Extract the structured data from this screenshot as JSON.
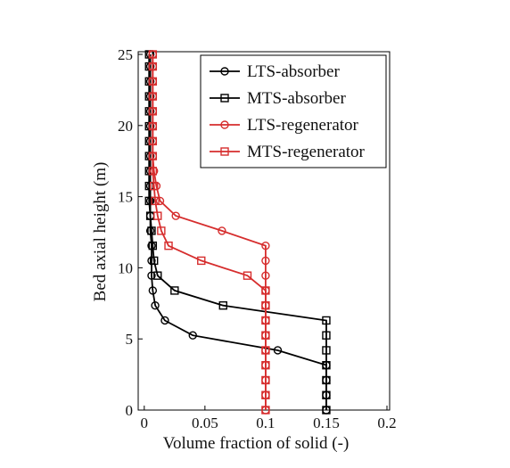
{
  "chart_data": {
    "type": "line",
    "xlabel": "Volume fraction of solid (-)",
    "ylabel": "Bed axial height (m)",
    "xlim": [
      -0.005,
      0.2
    ],
    "ylim": [
      0,
      25
    ],
    "xticks": [
      0,
      0.05,
      0.1,
      0.15,
      0.2
    ],
    "yticks": [
      0,
      5,
      10,
      15,
      20,
      25
    ],
    "legend": "upper right",
    "series": [
      {
        "name": "LTS-absorber",
        "color": "#000000",
        "marker": "circle",
        "x": [
          0.15,
          0.15,
          0.15,
          0.15,
          0.11,
          0.04,
          0.017,
          0.009,
          0.007,
          0.006,
          0.006,
          0.006,
          0.005,
          0.005,
          0.005,
          0.005,
          0.005,
          0.005,
          0.005,
          0.005,
          0.005,
          0.005,
          0.005,
          0.005,
          0.005
        ],
        "y": [
          0,
          1.05,
          2.1,
          3.15,
          4.2,
          5.25,
          6.3,
          7.35,
          8.4,
          9.45,
          10.5,
          11.55,
          12.6,
          13.65,
          14.7,
          15.75,
          16.8,
          17.85,
          18.9,
          19.95,
          21,
          22.05,
          23.1,
          24.15,
          25
        ]
      },
      {
        "name": "MTS-absorber",
        "color": "#000000",
        "marker": "square",
        "x": [
          0.15,
          0.15,
          0.15,
          0.15,
          0.15,
          0.15,
          0.15,
          0.065,
          0.025,
          0.011,
          0.008,
          0.007,
          0.006,
          0.005,
          0.004,
          0.004,
          0.004,
          0.004,
          0.004,
          0.004,
          0.004,
          0.004,
          0.004,
          0.004,
          0.004
        ],
        "y": [
          0,
          1.05,
          2.1,
          3.15,
          4.2,
          5.25,
          6.3,
          7.35,
          8.4,
          9.45,
          10.5,
          11.55,
          12.6,
          13.65,
          14.7,
          15.75,
          16.8,
          17.85,
          18.9,
          19.95,
          21,
          22.05,
          23.1,
          24.15,
          25
        ]
      },
      {
        "name": "LTS-regenerator",
        "color": "#d62d2d",
        "marker": "circle",
        "x": [
          0.1,
          0.1,
          0.1,
          0.1,
          0.1,
          0.1,
          0.1,
          0.1,
          0.1,
          0.1,
          0.1,
          0.1,
          0.064,
          0.026,
          0.013,
          0.01,
          0.008,
          0.007,
          0.007,
          0.007,
          0.007,
          0.007,
          0.007,
          0.007,
          0.007
        ],
        "y": [
          0,
          1.05,
          2.1,
          3.15,
          4.2,
          5.25,
          6.3,
          7.35,
          8.4,
          9.45,
          10.5,
          11.55,
          12.6,
          13.65,
          14.7,
          15.75,
          16.8,
          17.85,
          18.9,
          19.95,
          21,
          22.05,
          23.1,
          24.15,
          25
        ]
      },
      {
        "name": "MTS-regenerator",
        "color": "#d62d2d",
        "marker": "square",
        "x": [
          0.1,
          0.1,
          0.1,
          0.1,
          0.1,
          0.1,
          0.1,
          0.1,
          0.1,
          0.085,
          0.047,
          0.02,
          0.014,
          0.011,
          0.009,
          0.008,
          0.007,
          0.007,
          0.007,
          0.007,
          0.007,
          0.007,
          0.007,
          0.007,
          0.007
        ],
        "y": [
          0,
          1.05,
          2.1,
          3.15,
          4.2,
          5.25,
          6.3,
          7.35,
          8.4,
          9.45,
          10.5,
          11.55,
          12.6,
          13.65,
          14.7,
          15.75,
          16.8,
          17.85,
          18.9,
          19.95,
          21,
          22.05,
          23.1,
          24.15,
          25
        ]
      }
    ]
  }
}
